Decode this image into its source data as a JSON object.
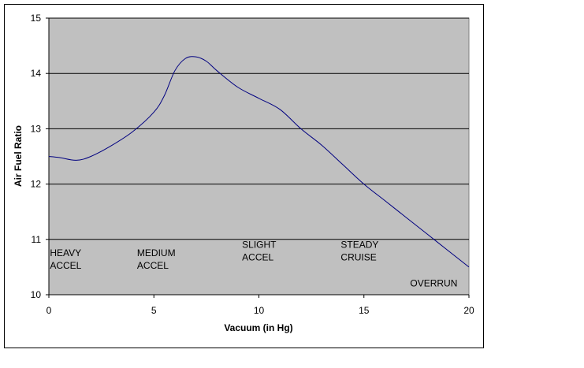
{
  "chart_data": {
    "type": "line",
    "title": "",
    "xlabel": "Vacuum (in Hg)",
    "ylabel": "Air Fuel Ratio",
    "xlim": [
      0,
      20
    ],
    "ylim": [
      10,
      15
    ],
    "x_ticks": [
      0,
      5,
      10,
      15,
      20
    ],
    "y_ticks": [
      10,
      11,
      12,
      13,
      14,
      15
    ],
    "grid": "horizontal",
    "legend": "none",
    "colors": {
      "plot_area": "#c0c0c0",
      "line": "#000080",
      "grid": "#000000"
    },
    "series": [
      {
        "x": [
          0,
          0.5,
          1.3,
          2.0,
          3.0,
          4.0,
          5.0,
          5.5,
          6.0,
          6.5,
          7.0,
          7.5,
          8.0,
          9.0,
          10.0,
          11.0,
          12.0,
          13.0,
          14.0,
          15.0,
          16.0,
          17.0,
          18.0,
          19.0,
          20.0
        ],
        "y": [
          12.5,
          12.48,
          12.43,
          12.5,
          12.7,
          12.95,
          13.3,
          13.6,
          14.05,
          14.27,
          14.3,
          14.22,
          14.05,
          13.75,
          13.55,
          13.35,
          13.0,
          12.7,
          12.35,
          12.0,
          11.7,
          11.4,
          11.1,
          10.8,
          10.5
        ]
      }
    ],
    "annotations": [
      {
        "lines": [
          "HEAVY",
          "ACCEL"
        ],
        "x": 0.05,
        "y": 10.7
      },
      {
        "lines": [
          "MEDIUM",
          "ACCEL"
        ],
        "x": 4.2,
        "y": 10.7
      },
      {
        "lines": [
          "SLIGHT",
          "ACCEL"
        ],
        "x": 9.2,
        "y": 10.85
      },
      {
        "lines": [
          "STEADY",
          "CRUISE"
        ],
        "x": 13.9,
        "y": 10.85
      },
      {
        "lines": [
          "OVERRUN"
        ],
        "x": 17.2,
        "y": 10.15
      }
    ]
  }
}
